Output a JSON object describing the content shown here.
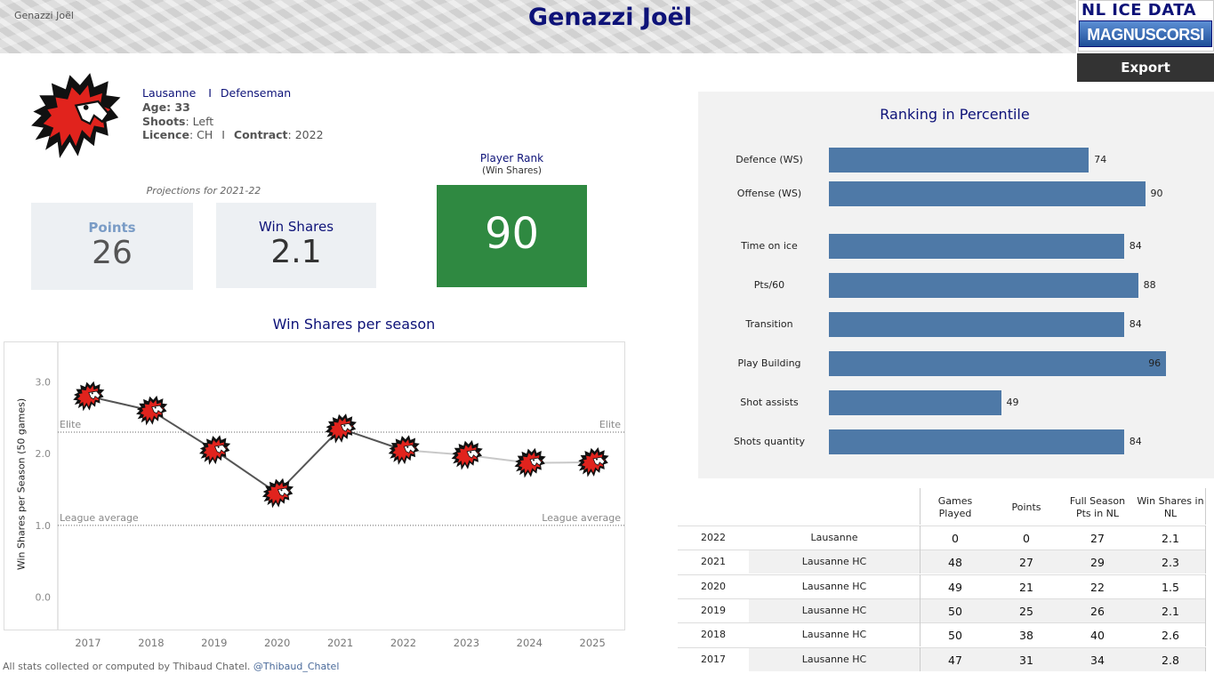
{
  "header": {
    "player_small": "Genazzi Joël",
    "title": "Genazzi Joël",
    "logo_line1": "NL ICE DATA",
    "logo_line2": "MAGNUSCORSI",
    "export_label": "Export"
  },
  "player": {
    "team": "Lausanne",
    "separator": "I",
    "position": "Defenseman",
    "age_label": "Age: 33",
    "shoots_label": "Shoots",
    "shoots_value": ": Left",
    "licence_label": "Licence",
    "licence_value": ": CH",
    "contract_label": "Contract",
    "contract_value": ": 2022"
  },
  "projections": {
    "caption": "Projections for 2021-22",
    "points_label": "Points",
    "points_value": "26",
    "ws_label": "Win Shares",
    "ws_value": "2.1"
  },
  "player_rank": {
    "title": "Player Rank",
    "subtitle": "(Win Shares)",
    "value": "90",
    "color": "#2f8941"
  },
  "ranking": {
    "title": "Ranking in Percentile",
    "bar_color": "#4e79a7"
  },
  "chart_data": [
    {
      "type": "line",
      "title": "Win Shares per season",
      "ylabel": "Win Shares per Season (50 games)",
      "xlabel": "",
      "x": [
        "2017",
        "2018",
        "2019",
        "2020",
        "2021",
        "2022",
        "2023",
        "2024",
        "2025"
      ],
      "series": [
        {
          "values": [
            2.8,
            2.6,
            2.05,
            1.45,
            2.35,
            2.05,
            1.98,
            1.87,
            1.88
          ]
        }
      ],
      "yticks": [
        "3.0",
        "2.0",
        "1.0",
        "0.0"
      ],
      "ylim": [
        -0.45,
        3.55
      ],
      "reference_lines": [
        {
          "label": "Elite",
          "value": 2.3
        },
        {
          "label": "League average",
          "value": 1.0
        }
      ],
      "marker": "team-logo",
      "line_color": "#555555",
      "projection_color": "#c8c8c8"
    },
    {
      "type": "bar",
      "title": "Ranking in Percentile",
      "categories": [
        "Defence (WS)",
        "Offense (WS)",
        "Time on ice",
        "Pts/60",
        "Transition",
        "Play Building",
        "Shot assists",
        "Shots quantity"
      ],
      "values": [
        74,
        90,
        84,
        88,
        84,
        96,
        49,
        84
      ],
      "xlim": [
        0,
        100
      ],
      "orientation": "horizontal"
    }
  ],
  "table": {
    "headers": [
      "Games Played",
      "Points",
      "Full Season Pts in NL",
      "Win Shares in NL"
    ],
    "rows": [
      {
        "season": "2022",
        "team": "Lausanne",
        "gp": "0",
        "pts": "0",
        "full": "27",
        "ws": "2.1"
      },
      {
        "season": "2021",
        "team": "Lausanne HC",
        "gp": "48",
        "pts": "27",
        "full": "29",
        "ws": "2.3"
      },
      {
        "season": "2020",
        "team": "Lausanne HC",
        "gp": "49",
        "pts": "21",
        "full": "22",
        "ws": "1.5"
      },
      {
        "season": "2019",
        "team": "Lausanne HC",
        "gp": "50",
        "pts": "25",
        "full": "26",
        "ws": "2.1"
      },
      {
        "season": "2018",
        "team": "Lausanne HC",
        "gp": "50",
        "pts": "38",
        "full": "40",
        "ws": "2.6"
      },
      {
        "season": "2017",
        "team": "Lausanne HC",
        "gp": "47",
        "pts": "31",
        "full": "34",
        "ws": "2.8"
      }
    ]
  },
  "footer": {
    "text": "All stats collected or computed by Thibaud Chatel.",
    "handle": "@Thibaud_Chatel"
  },
  "icons": {
    "team_logo": "lion-head-icon"
  },
  "colors": {
    "navy": "#0d1278",
    "lion_red": "#e1231d"
  }
}
